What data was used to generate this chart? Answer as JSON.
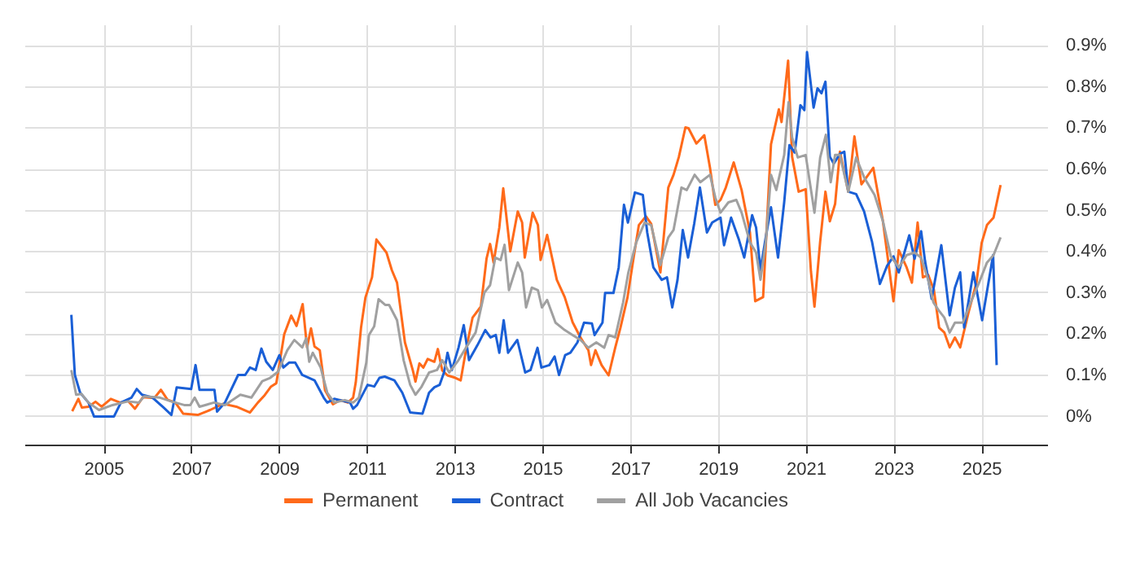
{
  "chart_data": {
    "type": "line",
    "xlim": [
      2003.2,
      2026.5
    ],
    "xticks": [
      2005,
      2007,
      2009,
      2011,
      2013,
      2015,
      2017,
      2019,
      2021,
      2023,
      2025
    ],
    "ylim": [
      -0.07,
      0.95
    ],
    "yticks": [
      {
        "value": 0,
        "label": "0%"
      },
      {
        "value": 0.1,
        "label": "0.1%"
      },
      {
        "value": 0.2,
        "label": "0.2%"
      },
      {
        "value": 0.3,
        "label": "0.3%"
      },
      {
        "value": 0.4,
        "label": "0.4%"
      },
      {
        "value": 0.5,
        "label": "0.5%"
      },
      {
        "value": 0.6,
        "label": "0.6%"
      },
      {
        "value": 0.7,
        "label": "0.7%"
      },
      {
        "value": 0.8,
        "label": "0.8%"
      },
      {
        "value": 0.9,
        "label": "0.9%"
      }
    ],
    "grid": true,
    "legend": "bottom",
    "line_style": "solid",
    "series": [
      {
        "name": "Permanent",
        "color": "#ff6a1a",
        "x": [
          2004.27,
          2004.41,
          2004.49,
          2004.64,
          2004.8,
          2004.94,
          2005.15,
          2005.36,
          2005.54,
          2005.7,
          2005.88,
          2006.14,
          2006.29,
          2006.44,
          2006.62,
          2006.8,
          2007.13,
          2007.41,
          2007.71,
          2008.01,
          2008.32,
          2008.5,
          2008.64,
          2008.8,
          2008.92,
          2009.1,
          2009.26,
          2009.38,
          2009.52,
          2009.62,
          2009.71,
          2009.79,
          2009.91,
          2010.03,
          2010.21,
          2010.37,
          2010.55,
          2010.67,
          2010.73,
          2010.85,
          2010.95,
          2011.1,
          2011.2,
          2011.43,
          2011.55,
          2011.67,
          2011.85,
          2012.03,
          2012.09,
          2012.18,
          2012.27,
          2012.37,
          2012.52,
          2012.6,
          2012.7,
          2012.82,
          2013.0,
          2013.12,
          2013.24,
          2013.39,
          2013.58,
          2013.71,
          2013.79,
          2013.87,
          2014.0,
          2014.09,
          2014.25,
          2014.42,
          2014.52,
          2014.58,
          2014.76,
          2014.88,
          2014.94,
          2015.09,
          2015.31,
          2015.49,
          2015.67,
          2015.85,
          2016.03,
          2016.09,
          2016.19,
          2016.33,
          2016.49,
          2016.64,
          2016.76,
          2016.92,
          2017.06,
          2017.18,
          2017.34,
          2017.46,
          2017.67,
          2017.85,
          2017.97,
          2018.09,
          2018.24,
          2018.31,
          2018.49,
          2018.67,
          2018.8,
          2018.92,
          2019.04,
          2019.16,
          2019.34,
          2019.52,
          2019.71,
          2019.83,
          2020.01,
          2020.19,
          2020.37,
          2020.43,
          2020.58,
          2020.67,
          2020.82,
          2020.98,
          2021.1,
          2021.18,
          2021.31,
          2021.43,
          2021.53,
          2021.65,
          2021.76,
          2021.95,
          2022.09,
          2022.25,
          2022.52,
          2022.74,
          2022.98,
          2023.1,
          2023.28,
          2023.4,
          2023.53,
          2023.65,
          2023.77,
          2023.9,
          2024.02,
          2024.14,
          2024.26,
          2024.38,
          2024.5,
          2024.69,
          2024.87,
          2024.99,
          2025.11,
          2025.26,
          2025.42
        ],
        "values": [
          0.013,
          0.043,
          0.022,
          0.024,
          0.036,
          0.024,
          0.043,
          0.034,
          0.038,
          0.019,
          0.047,
          0.045,
          0.065,
          0.041,
          0.034,
          0.007,
          0.004,
          0.016,
          0.031,
          0.024,
          0.01,
          0.034,
          0.05,
          0.073,
          0.081,
          0.2,
          0.245,
          0.22,
          0.273,
          0.168,
          0.214,
          0.17,
          0.161,
          0.064,
          0.03,
          0.04,
          0.034,
          0.046,
          0.083,
          0.216,
          0.289,
          0.338,
          0.43,
          0.398,
          0.356,
          0.325,
          0.18,
          0.112,
          0.085,
          0.129,
          0.119,
          0.14,
          0.133,
          0.164,
          0.112,
          0.1,
          0.094,
          0.088,
          0.161,
          0.24,
          0.267,
          0.384,
          0.419,
          0.374,
          0.459,
          0.554,
          0.401,
          0.498,
          0.471,
          0.386,
          0.495,
          0.465,
          0.38,
          0.441,
          0.332,
          0.29,
          0.229,
          0.192,
          0.161,
          0.125,
          0.161,
          0.125,
          0.1,
          0.167,
          0.216,
          0.289,
          0.386,
          0.465,
          0.486,
          0.468,
          0.35,
          0.556,
          0.587,
          0.63,
          0.702,
          0.7,
          0.663,
          0.683,
          0.604,
          0.514,
          0.526,
          0.556,
          0.617,
          0.55,
          0.447,
          0.28,
          0.29,
          0.661,
          0.746,
          0.715,
          0.864,
          0.631,
          0.546,
          0.552,
          0.352,
          0.267,
          0.425,
          0.546,
          0.474,
          0.516,
          0.643,
          0.546,
          0.68,
          0.564,
          0.604,
          0.474,
          0.28,
          0.404,
          0.362,
          0.325,
          0.471,
          0.338,
          0.344,
          0.308,
          0.216,
          0.204,
          0.168,
          0.192,
          0.168,
          0.253,
          0.325,
          0.422,
          0.465,
          0.483,
          0.562
        ]
      },
      {
        "name": "Contract",
        "color": "#1a5fd6",
        "x": [
          2004.25,
          2004.33,
          2004.45,
          2004.64,
          2004.77,
          2005.22,
          2005.38,
          2005.62,
          2005.74,
          2005.86,
          2006.1,
          2006.35,
          2006.53,
          2006.65,
          2006.98,
          2007.08,
          2007.17,
          2007.51,
          2007.57,
          2007.75,
          2008.05,
          2008.21,
          2008.32,
          2008.45,
          2008.58,
          2008.69,
          2008.84,
          2008.99,
          2009.08,
          2009.21,
          2009.35,
          2009.51,
          2009.79,
          2010.0,
          2010.08,
          2010.24,
          2010.6,
          2010.67,
          2010.76,
          2011.0,
          2011.15,
          2011.27,
          2011.39,
          2011.61,
          2011.79,
          2011.97,
          2012.25,
          2012.4,
          2012.52,
          2012.64,
          2012.74,
          2012.82,
          2012.92,
          2013.07,
          2013.19,
          2013.31,
          2013.5,
          2013.68,
          2013.8,
          2013.92,
          2014.0,
          2014.1,
          2014.2,
          2014.41,
          2014.59,
          2014.71,
          2014.87,
          2014.96,
          2015.14,
          2015.26,
          2015.36,
          2015.5,
          2015.62,
          2015.78,
          2015.93,
          2016.11,
          2016.17,
          2016.35,
          2016.41,
          2016.6,
          2016.72,
          2016.84,
          2016.93,
          2017.09,
          2017.27,
          2017.37,
          2017.51,
          2017.7,
          2017.82,
          2017.94,
          2018.06,
          2018.18,
          2018.3,
          2018.44,
          2018.57,
          2018.73,
          2018.85,
          2019.04,
          2019.12,
          2019.28,
          2019.46,
          2019.58,
          2019.76,
          2019.85,
          2019.95,
          2020.07,
          2020.19,
          2020.35,
          2020.49,
          2020.61,
          2020.73,
          2020.86,
          2020.95,
          2021.01,
          2021.16,
          2021.25,
          2021.34,
          2021.43,
          2021.53,
          2021.62,
          2021.76,
          2021.86,
          2021.95,
          2022.13,
          2022.31,
          2022.49,
          2022.67,
          2022.83,
          2022.98,
          2023.1,
          2023.22,
          2023.34,
          2023.46,
          2023.61,
          2023.7,
          2023.85,
          2024.07,
          2024.26,
          2024.38,
          2024.5,
          2024.59,
          2024.8,
          2025.0,
          2025.25,
          2025.33
        ],
        "values": [
          0.247,
          0.101,
          0.058,
          0.034,
          0.0,
          0.0,
          0.034,
          0.046,
          0.067,
          0.053,
          0.046,
          0.022,
          0.004,
          0.071,
          0.067,
          0.125,
          0.065,
          0.065,
          0.012,
          0.034,
          0.101,
          0.101,
          0.119,
          0.113,
          0.165,
          0.133,
          0.113,
          0.149,
          0.119,
          0.131,
          0.131,
          0.101,
          0.088,
          0.046,
          0.034,
          0.043,
          0.034,
          0.019,
          0.028,
          0.077,
          0.073,
          0.094,
          0.097,
          0.088,
          0.058,
          0.01,
          0.007,
          0.058,
          0.071,
          0.077,
          0.107,
          0.155,
          0.113,
          0.167,
          0.222,
          0.137,
          0.173,
          0.21,
          0.192,
          0.198,
          0.155,
          0.234,
          0.155,
          0.186,
          0.107,
          0.113,
          0.167,
          0.119,
          0.125,
          0.146,
          0.101,
          0.149,
          0.155,
          0.18,
          0.228,
          0.226,
          0.198,
          0.228,
          0.3,
          0.3,
          0.362,
          0.514,
          0.471,
          0.544,
          0.538,
          0.447,
          0.362,
          0.332,
          0.338,
          0.265,
          0.332,
          0.453,
          0.386,
          0.468,
          0.556,
          0.447,
          0.471,
          0.483,
          0.416,
          0.483,
          0.429,
          0.386,
          0.489,
          0.459,
          0.356,
          0.435,
          0.508,
          0.386,
          0.52,
          0.659,
          0.641,
          0.756,
          0.744,
          0.885,
          0.75,
          0.797,
          0.785,
          0.813,
          0.631,
          0.614,
          0.638,
          0.643,
          0.546,
          0.54,
          0.498,
          0.425,
          0.322,
          0.365,
          0.389,
          0.35,
          0.395,
          0.44,
          0.383,
          0.45,
          0.377,
          0.286,
          0.416,
          0.246,
          0.313,
          0.35,
          0.216,
          0.35,
          0.234,
          0.392,
          0.125
        ]
      },
      {
        "name": "All Job Vacancies",
        "color": "#a0a0a0",
        "x": [
          2004.25,
          2004.36,
          2004.48,
          2004.64,
          2004.88,
          2005.19,
          2005.54,
          2005.79,
          2005.91,
          2006.27,
          2006.52,
          2006.82,
          2006.96,
          2007.06,
          2007.17,
          2007.5,
          2007.75,
          2008.1,
          2008.35,
          2008.6,
          2008.78,
          2008.96,
          2009.17,
          2009.33,
          2009.51,
          2009.6,
          2009.67,
          2009.75,
          2009.93,
          2010.08,
          2010.24,
          2010.48,
          2010.67,
          2010.8,
          2010.97,
          2011.03,
          2011.15,
          2011.25,
          2011.4,
          2011.49,
          2011.67,
          2011.82,
          2011.97,
          2012.09,
          2012.22,
          2012.4,
          2012.58,
          2012.7,
          2012.86,
          2013.07,
          2013.24,
          2013.46,
          2013.66,
          2013.79,
          2013.91,
          2014.03,
          2014.12,
          2014.22,
          2014.42,
          2014.52,
          2014.61,
          2014.74,
          2014.88,
          2014.97,
          2015.09,
          2015.28,
          2015.49,
          2015.67,
          2015.85,
          2016.03,
          2016.21,
          2016.39,
          2016.49,
          2016.64,
          2016.82,
          2016.94,
          2017.12,
          2017.31,
          2017.46,
          2017.67,
          2017.85,
          2017.97,
          2018.15,
          2018.27,
          2018.45,
          2018.58,
          2018.8,
          2018.92,
          2019.04,
          2019.22,
          2019.4,
          2019.52,
          2019.71,
          2019.85,
          2019.95,
          2020.07,
          2020.19,
          2020.31,
          2020.49,
          2020.59,
          2020.67,
          2020.8,
          2020.98,
          2021.18,
          2021.31,
          2021.44,
          2021.55,
          2021.65,
          2021.76,
          2021.95,
          2022.13,
          2022.31,
          2022.55,
          2022.74,
          2022.92,
          2023.1,
          2023.28,
          2023.46,
          2023.61,
          2023.77,
          2023.89,
          2024.01,
          2024.14,
          2024.26,
          2024.38,
          2024.56,
          2024.74,
          2024.93,
          2025.11,
          2025.26,
          2025.42
        ],
        "values": [
          0.113,
          0.053,
          0.055,
          0.034,
          0.016,
          0.028,
          0.037,
          0.034,
          0.049,
          0.046,
          0.037,
          0.028,
          0.028,
          0.046,
          0.024,
          0.034,
          0.028,
          0.053,
          0.046,
          0.086,
          0.094,
          0.109,
          0.161,
          0.186,
          0.168,
          0.19,
          0.133,
          0.155,
          0.119,
          0.058,
          0.034,
          0.04,
          0.034,
          0.046,
          0.131,
          0.198,
          0.219,
          0.285,
          0.271,
          0.271,
          0.234,
          0.137,
          0.077,
          0.053,
          0.071,
          0.107,
          0.113,
          0.137,
          0.107,
          0.137,
          0.167,
          0.204,
          0.301,
          0.319,
          0.386,
          0.38,
          0.417,
          0.307,
          0.374,
          0.35,
          0.265,
          0.313,
          0.307,
          0.265,
          0.283,
          0.228,
          0.21,
          0.198,
          0.186,
          0.167,
          0.18,
          0.167,
          0.198,
          0.192,
          0.277,
          0.35,
          0.423,
          0.471,
          0.465,
          0.368,
          0.435,
          0.453,
          0.556,
          0.55,
          0.587,
          0.569,
          0.587,
          0.532,
          0.495,
          0.52,
          0.526,
          0.495,
          0.423,
          0.398,
          0.332,
          0.423,
          0.587,
          0.55,
          0.635,
          0.763,
          0.678,
          0.629,
          0.635,
          0.495,
          0.629,
          0.684,
          0.569,
          0.635,
          0.635,
          0.546,
          0.629,
          0.581,
          0.538,
          0.474,
          0.389,
          0.362,
          0.392,
          0.398,
          0.386,
          0.332,
          0.277,
          0.258,
          0.24,
          0.204,
          0.228,
          0.228,
          0.277,
          0.325,
          0.374,
          0.392,
          0.435
        ]
      }
    ]
  }
}
